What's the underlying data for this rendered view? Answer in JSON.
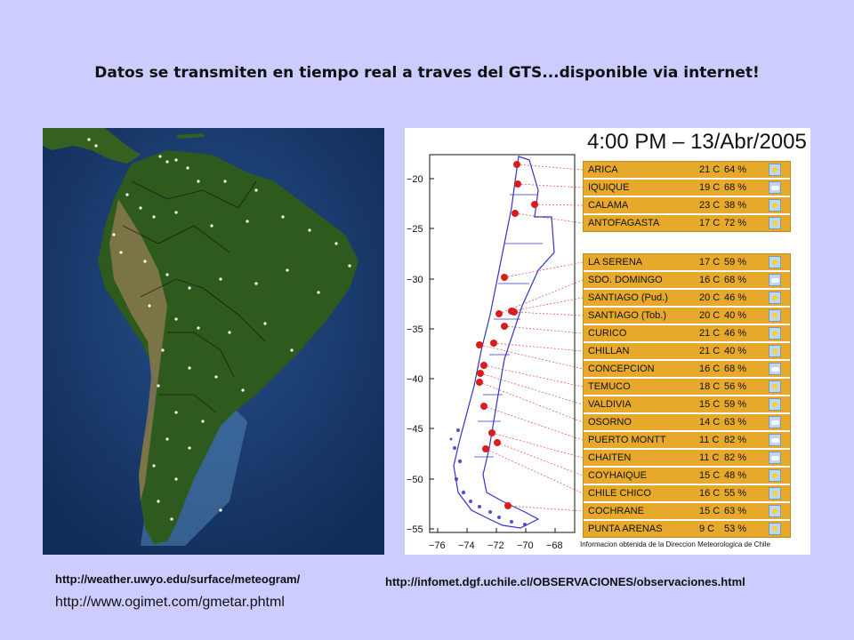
{
  "title": "Datos se transmiten en tiempo real a traves del GTS...disponible via internet!",
  "urls": {
    "uwyo": "http://weather.uwyo.edu/surface/meteogram/",
    "dgf": "http://infomet.dgf.uchile.cl/OBSERVACIONES/observaciones.html",
    "ogimet": "http://www.ogimet.com/gmetar.phtml"
  },
  "panel": {
    "title": "4:00 PM  –  13/Abr/2005",
    "credit": "Informacion obtenida de la Direccion Meteorologica de Chile",
    "y_ticks": [
      "−20",
      "−25",
      "−30",
      "−35",
      "−40",
      "−45",
      "−50",
      "−55"
    ],
    "x_ticks": [
      "−76",
      "−74",
      "−72",
      "−70",
      "−68"
    ],
    "group1": [
      {
        "name": "ARICA",
        "temp": "21 C",
        "hum": "64 %",
        "icon": "sunny-icon"
      },
      {
        "name": "IQUIQUE",
        "temp": "19 C",
        "hum": "68 %",
        "icon": "partly-cloudy-icon"
      },
      {
        "name": "CALAMA",
        "temp": "23 C",
        "hum": "38 %",
        "icon": "sunny-icon"
      },
      {
        "name": "ANTOFAGASTA",
        "temp": "17 C",
        "hum": "72 %",
        "icon": "sunny-icon"
      }
    ],
    "group2": [
      {
        "name": "LA SERENA",
        "temp": "17 C",
        "hum": "59 %",
        "icon": "sunny-icon"
      },
      {
        "name": "SDO. DOMINGO",
        "temp": "16 C",
        "hum": "68 %",
        "icon": "partly-cloudy-icon"
      },
      {
        "name": "SANTIAGO (Pud.)",
        "temp": "20 C",
        "hum": "46 %",
        "icon": "sunny-icon"
      },
      {
        "name": "SANTIAGO (Tob.)",
        "temp": "20 C",
        "hum": "40 %",
        "icon": "sunny-icon"
      },
      {
        "name": "CURICO",
        "temp": "21 C",
        "hum": "46 %",
        "icon": "sunny-icon"
      },
      {
        "name": "CHILLAN",
        "temp": "21 C",
        "hum": "40 %",
        "icon": "sunny-icon"
      },
      {
        "name": "CONCEPCION",
        "temp": "16 C",
        "hum": "68 %",
        "icon": "partly-cloudy-icon"
      },
      {
        "name": "TEMUCO",
        "temp": "18 C",
        "hum": "56 %",
        "icon": "sunny-icon"
      },
      {
        "name": "VALDIVIA",
        "temp": "15 C",
        "hum": "59 %",
        "icon": "sunny-icon"
      },
      {
        "name": "OSORNO",
        "temp": "14 C",
        "hum": "63 %",
        "icon": "partly-cloudy-icon"
      },
      {
        "name": "PUERTO MONTT",
        "temp": "11 C",
        "hum": "82 %",
        "icon": "partly-cloudy-icon"
      },
      {
        "name": "CHAITEN",
        "temp": "11 C",
        "hum": "82 %",
        "icon": "partly-cloudy-icon"
      },
      {
        "name": "COYHAIQUE",
        "temp": "15 C",
        "hum": "48 %",
        "icon": "sunny-icon"
      },
      {
        "name": "CHILE CHICO",
        "temp": "16 C",
        "hum": "55 %",
        "icon": "sunny-icon"
      },
      {
        "name": "COCHRANE",
        "temp": "15 C",
        "hum": "63 %",
        "icon": "sunny-icon"
      },
      {
        "name": "PUNTA ARENAS",
        "temp": "9 C",
        "hum": "53 %",
        "icon": "sunny-icon"
      }
    ]
  },
  "colors": {
    "background": "#ccccff",
    "table_bg": "#e6a92c",
    "marker": "#d91d1d",
    "ocean": "#1d3f74",
    "land": "#2f5a1e"
  }
}
